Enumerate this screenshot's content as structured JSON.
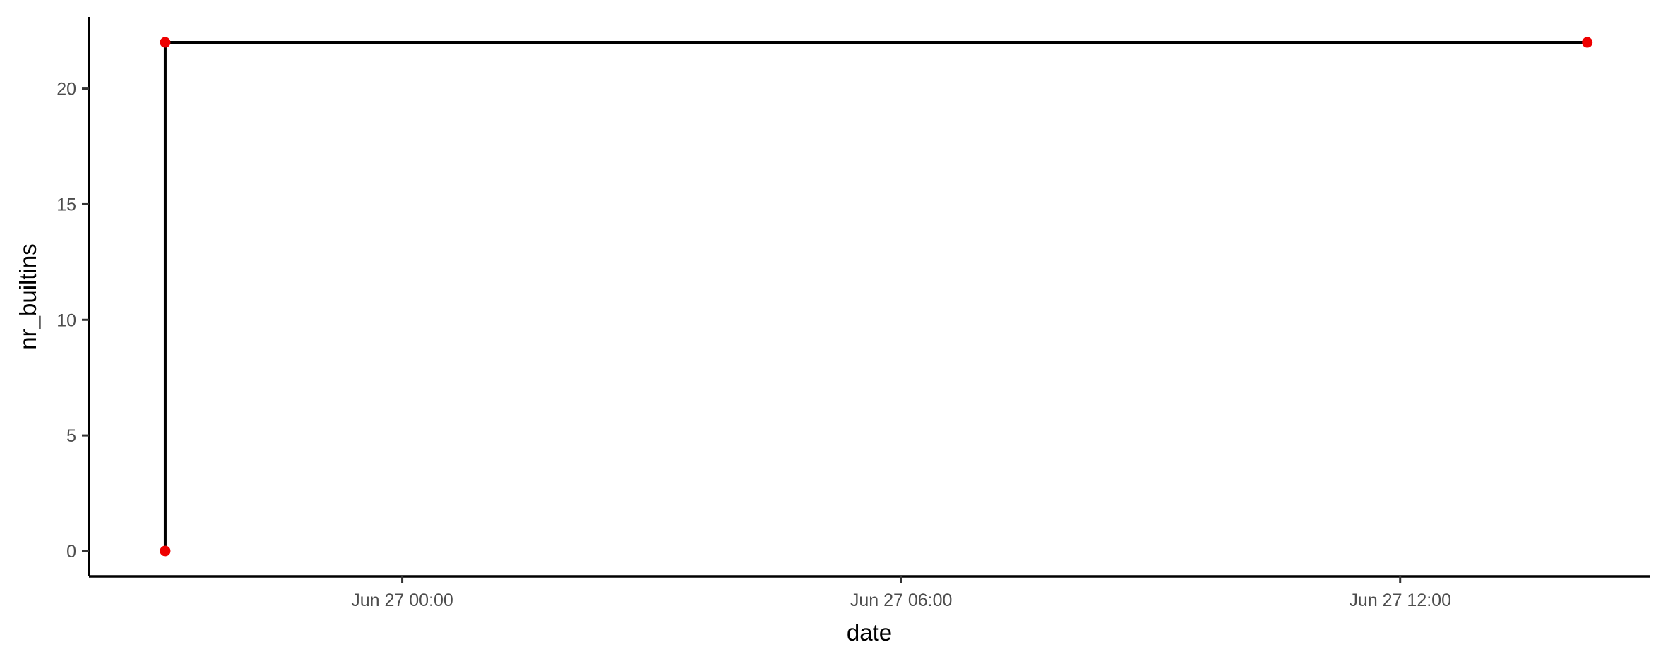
{
  "chart_data": {
    "type": "line",
    "title": "",
    "xlabel": "date",
    "ylabel": "nr_builtins",
    "x_type": "datetime",
    "series": [
      {
        "x": [
          "2024-06-26 21:09",
          "2024-06-26 21:09",
          "2024-06-27 14:15"
        ],
        "y": [
          0,
          22,
          22
        ],
        "line_color": "#000000",
        "point_color": "#ee0000",
        "step": "hv"
      }
    ],
    "xlim": [
      "2024-06-26 20:14",
      "2024-06-27 15:00"
    ],
    "ylim": [
      -1.1,
      23.1
    ],
    "xticks": [
      {
        "value": "2024-06-27 00:00",
        "label": "Jun 27 00:00"
      },
      {
        "value": "2024-06-27 06:00",
        "label": "Jun 27 06:00"
      },
      {
        "value": "2024-06-27 12:00",
        "label": "Jun 27 12:00"
      }
    ],
    "yticks": [
      {
        "value": 0,
        "label": "0"
      },
      {
        "value": 5,
        "label": "5"
      },
      {
        "value": 10,
        "label": "10"
      },
      {
        "value": 15,
        "label": "15"
      },
      {
        "value": 20,
        "label": "20"
      }
    ],
    "grid": false,
    "legend": "none"
  }
}
